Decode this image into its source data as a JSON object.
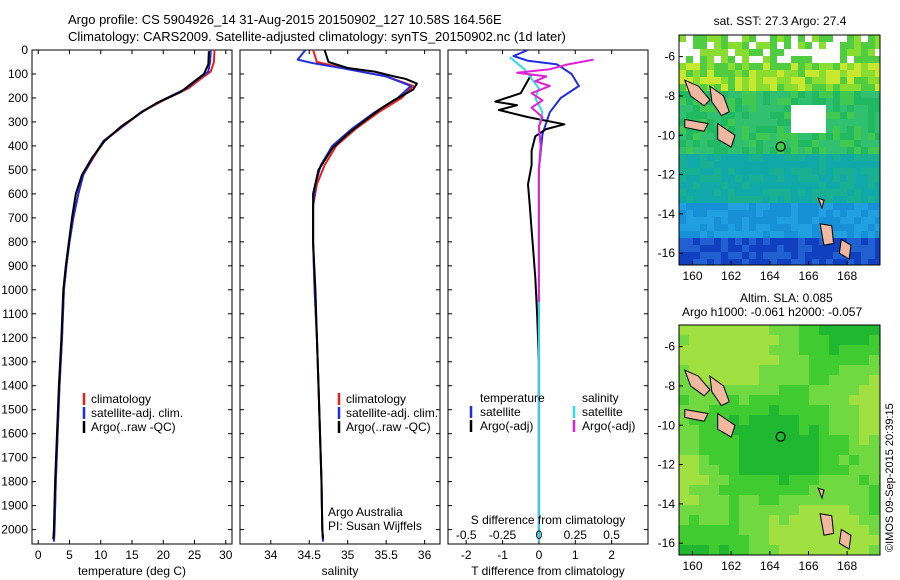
{
  "header": {
    "line1": "Argo profile: CS 5904926_14 31-Aug-2015 20150902_127 10.58S 164.56E",
    "line2": "Climatology: CARS2009. Satellite-adjusted climatology: synTS_20150902.nc (1d later)"
  },
  "colors": {
    "climatology": "#e8201c",
    "satellite": "#1f2ee0",
    "argo": "#000000",
    "sal_satellite": "#35d8e8",
    "sal_argo": "#e020d8",
    "land": "#f0b8a0"
  },
  "chart_data": [
    {
      "type": "line",
      "id": "temperature",
      "xlabel": "temperature (deg C)",
      "xlim": [
        -1,
        31
      ],
      "ylim": [
        2060,
        0
      ],
      "x_ticks": [
        "0",
        "5",
        "10",
        "15",
        "20",
        "25",
        "30"
      ],
      "y_ticks": [
        "0",
        "100",
        "200",
        "300",
        "400",
        "500",
        "600",
        "700",
        "800",
        "900",
        "1000",
        "1100",
        "1200",
        "1300",
        "1400",
        "1500",
        "1600",
        "1700",
        "1800",
        "1900",
        "2000"
      ],
      "legend": [
        "climatology",
        "satellite-adj. clim.",
        "Argo(..raw -QC)"
      ],
      "series": [
        {
          "name": "climatology",
          "color": "#e8201c",
          "points": [
            [
              28.2,
              0
            ],
            [
              28.1,
              50
            ],
            [
              27.6,
              90
            ],
            [
              26,
              120
            ],
            [
              24,
              160
            ],
            [
              20,
              210
            ],
            [
              16.5,
              260
            ],
            [
              13.5,
              320
            ],
            [
              10.5,
              380
            ],
            [
              8.8,
              450
            ],
            [
              7.2,
              520
            ],
            [
              6.4,
              600
            ],
            [
              5.6,
              700
            ],
            [
              5,
              800
            ],
            [
              4.5,
              900
            ],
            [
              4.1,
              1000
            ],
            [
              3.8,
              1200
            ],
            [
              3.4,
              1400
            ],
            [
              3.1,
              1600
            ],
            [
              2.8,
              1800
            ],
            [
              2.6,
              2000
            ],
            [
              2.5,
              2050
            ]
          ]
        },
        {
          "name": "satellite-adj. clim.",
          "color": "#1f2ee0",
          "points": [
            [
              27.6,
              0
            ],
            [
              27.5,
              50
            ],
            [
              27.2,
              90
            ],
            [
              25.6,
              120
            ],
            [
              23.7,
              160
            ],
            [
              19.8,
              210
            ],
            [
              16.4,
              260
            ],
            [
              13.4,
              320
            ],
            [
              10.4,
              380
            ],
            [
              8.7,
              450
            ],
            [
              7.2,
              520
            ],
            [
              6.4,
              600
            ],
            [
              5.6,
              700
            ],
            [
              5,
              800
            ],
            [
              4.5,
              900
            ],
            [
              4.1,
              1000
            ],
            [
              3.8,
              1200
            ],
            [
              3.4,
              1400
            ],
            [
              3.1,
              1600
            ],
            [
              2.8,
              1800
            ],
            [
              2.6,
              2000
            ],
            [
              2.5,
              2050
            ]
          ]
        },
        {
          "name": "Argo(..raw -QC)",
          "color": "#000000",
          "points": [
            [
              27.3,
              5
            ],
            [
              27.2,
              60
            ],
            [
              26.5,
              100
            ],
            [
              24.5,
              140
            ],
            [
              22.8,
              175
            ],
            [
              19,
              220
            ],
            [
              16.8,
              255
            ],
            [
              13.2,
              320
            ],
            [
              10.6,
              380
            ],
            [
              8.6,
              450
            ],
            [
              7,
              520
            ],
            [
              6,
              600
            ],
            [
              5.4,
              700
            ],
            [
              4.9,
              800
            ],
            [
              4.4,
              900
            ],
            [
              4,
              1000
            ],
            [
              3.7,
              1200
            ],
            [
              3.3,
              1400
            ],
            [
              3,
              1600
            ],
            [
              2.7,
              1800
            ],
            [
              2.5,
              2000
            ],
            [
              2.4,
              2040
            ]
          ]
        }
      ]
    },
    {
      "type": "line",
      "id": "salinity",
      "xlabel": "salinity",
      "xlim": [
        33.6,
        36.2
      ],
      "ylim": [
        2060,
        0
      ],
      "x_ticks": [
        "34",
        "34.5",
        "35",
        "35.5",
        "36"
      ],
      "legend": [
        "climatology",
        "satellite-adj. clim.",
        "Argo(..raw -QC)"
      ],
      "annotation": [
        "Argo Australia",
        "PI: Susan Wijffels"
      ],
      "series": [
        {
          "name": "climatology",
          "color": "#e8201c",
          "points": [
            [
              34.55,
              0
            ],
            [
              34.6,
              50
            ],
            [
              35.0,
              80
            ],
            [
              35.5,
              110
            ],
            [
              35.85,
              150
            ],
            [
              35.7,
              200
            ],
            [
              35.4,
              260
            ],
            [
              35.1,
              330
            ],
            [
              34.85,
              400
            ],
            [
              34.7,
              480
            ],
            [
              34.6,
              560
            ],
            [
              34.55,
              650
            ],
            [
              34.55,
              800
            ],
            [
              34.57,
              1000
            ],
            [
              34.6,
              1200
            ],
            [
              34.62,
              1400
            ],
            [
              34.64,
              1600
            ],
            [
              34.66,
              1800
            ],
            [
              34.67,
              2000
            ],
            [
              34.68,
              2050
            ]
          ]
        },
        {
          "name": "satellite-adj. clim.",
          "color": "#1f2ee0",
          "points": [
            [
              34.45,
              0
            ],
            [
              34.35,
              40
            ],
            [
              34.55,
              55
            ],
            [
              35.0,
              80
            ],
            [
              35.5,
              110
            ],
            [
              35.82,
              150
            ],
            [
              35.65,
              200
            ],
            [
              35.35,
              260
            ],
            [
              35.05,
              330
            ],
            [
              34.8,
              400
            ],
            [
              34.65,
              480
            ],
            [
              34.58,
              560
            ],
            [
              34.55,
              650
            ],
            [
              34.55,
              800
            ],
            [
              34.57,
              1000
            ],
            [
              34.6,
              1200
            ],
            [
              34.62,
              1400
            ],
            [
              34.64,
              1600
            ],
            [
              34.66,
              1800
            ],
            [
              34.67,
              2000
            ],
            [
              34.68,
              2050
            ]
          ]
        },
        {
          "name": "Argo(..raw -QC)",
          "color": "#000000",
          "points": [
            [
              34.7,
              0
            ],
            [
              34.75,
              50
            ],
            [
              35.0,
              75
            ],
            [
              35.35,
              90
            ],
            [
              35.6,
              110
            ],
            [
              35.75,
              120
            ],
            [
              35.9,
              140
            ],
            [
              35.85,
              165
            ],
            [
              35.6,
              210
            ],
            [
              35.45,
              240
            ],
            [
              35.2,
              300
            ],
            [
              35.0,
              350
            ],
            [
              34.8,
              410
            ],
            [
              34.62,
              500
            ],
            [
              34.55,
              600
            ],
            [
              34.55,
              800
            ],
            [
              34.58,
              1000
            ],
            [
              34.6,
              1200
            ],
            [
              34.62,
              1400
            ],
            [
              34.64,
              1600
            ],
            [
              34.66,
              1800
            ],
            [
              34.67,
              2000
            ],
            [
              34.68,
              2040
            ]
          ]
        }
      ]
    },
    {
      "type": "line",
      "id": "difference",
      "xlabel": "T difference from climatology",
      "x_ticks": [
        "-2",
        "-1",
        "0",
        "1",
        "2"
      ],
      "xlim": [
        -2.5,
        3.0
      ],
      "ylim": [
        2060,
        0
      ],
      "top_xlabel": "S difference from climatology",
      "top_ticks": [
        "-0.5",
        "-0.25",
        "0",
        "0.25",
        "0.5"
      ],
      "legend_left": [
        "temperature",
        "satellite",
        "Argo(-adj)"
      ],
      "legend_right": [
        "salinity",
        "satellite",
        "Argo(-adj)"
      ],
      "series": [
        {
          "name": "satellite",
          "color": "#1f2ee0",
          "points": [
            [
              -0.3,
              0
            ],
            [
              -0.7,
              25
            ],
            [
              -0.3,
              45
            ],
            [
              0.5,
              60
            ],
            [
              0.9,
              100
            ],
            [
              1.1,
              150
            ],
            [
              0.6,
              200
            ],
            [
              0.3,
              260
            ],
            [
              0.1,
              350
            ],
            [
              0,
              500
            ],
            [
              0,
              700
            ],
            [
              0,
              1000
            ],
            [
              0,
              1400
            ],
            [
              0,
              2050
            ]
          ]
        },
        {
          "name": "Argo(-adj)",
          "color": "#000000",
          "points": [
            [
              -0.2,
              100
            ],
            [
              -0.5,
              180
            ],
            [
              -1.2,
              215
            ],
            [
              -0.6,
              230
            ],
            [
              -1.1,
              250
            ],
            [
              -0.3,
              280
            ],
            [
              0.7,
              310
            ],
            [
              0.2,
              330
            ],
            [
              -0.1,
              360
            ],
            [
              -0.2,
              420
            ],
            [
              -0.2,
              480
            ],
            [
              -0.3,
              560
            ],
            [
              -0.25,
              650
            ],
            [
              -0.2,
              750
            ],
            [
              -0.15,
              850
            ],
            [
              -0.1,
              950
            ],
            [
              -0.05,
              1100
            ],
            [
              0,
              1300
            ],
            [
              0,
              1600
            ],
            [
              0,
              1900
            ],
            [
              0,
              2040
            ]
          ]
        },
        {
          "name": "salinity satellite",
          "color": "#35d8e8",
          "points": [
            [
              -0.8,
              30
            ],
            [
              -0.4,
              80
            ],
            [
              -0.2,
              120
            ],
            [
              0,
              160
            ],
            [
              -0.1,
              200
            ],
            [
              0.1,
              260
            ],
            [
              0,
              320
            ],
            [
              0.05,
              400
            ],
            [
              0,
              500
            ],
            [
              0,
              800
            ],
            [
              0,
              1200
            ],
            [
              0,
              1600
            ],
            [
              0,
              2050
            ]
          ]
        },
        {
          "name": "salinity Argo(-adj)",
          "color": "#e020d8",
          "points": [
            [
              1.5,
              40
            ],
            [
              0.8,
              60
            ],
            [
              0.3,
              80
            ],
            [
              -0.6,
              95
            ],
            [
              0.2,
              110
            ],
            [
              -0.1,
              130
            ],
            [
              0.3,
              150
            ],
            [
              -0.2,
              180
            ],
            [
              0.1,
              210
            ],
            [
              -0.2,
              240
            ],
            [
              0.1,
              280
            ],
            [
              0,
              320
            ],
            [
              0.05,
              400
            ],
            [
              0,
              500
            ],
            [
              0,
              800
            ],
            [
              0,
              1050
            ]
          ]
        }
      ]
    },
    {
      "type": "heatmap",
      "id": "sst-map",
      "title": "sat. SST: 27.3 Argo: 27.4",
      "x_ticks": [
        "160",
        "162",
        "164",
        "166",
        "168"
      ],
      "y_ticks": [
        "-6",
        "-8",
        "-10",
        "-12",
        "-14",
        "-16"
      ],
      "xlim": [
        159.3,
        169.7
      ],
      "ylim": [
        -16.6,
        -4.9
      ],
      "marker": {
        "lon": 164.56,
        "lat": -10.58
      }
    },
    {
      "type": "heatmap",
      "id": "sla-map",
      "title": "Altim. SLA: 0.085",
      "subtitle": "Argo h1000: -0.061 h2000: -0.057",
      "x_ticks": [
        "160",
        "162",
        "164",
        "166",
        "168"
      ],
      "y_ticks": [
        "-6",
        "-8",
        "-10",
        "-12",
        "-14",
        "-16"
      ],
      "xlim": [
        159.3,
        169.7
      ],
      "ylim": [
        -16.6,
        -4.9
      ],
      "marker": {
        "lon": 164.56,
        "lat": -10.58
      }
    }
  ],
  "credit": "©IMOS 09-Sep-2015 20:39:15"
}
